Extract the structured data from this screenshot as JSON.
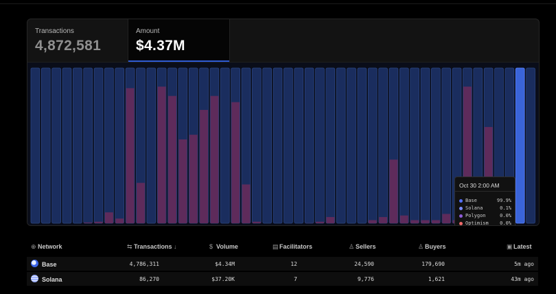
{
  "stats": {
    "transactions": {
      "label": "Transactions",
      "value": "4,872,581"
    },
    "amount": {
      "label": "Amount",
      "value": "$4.37M"
    }
  },
  "chart_data": {
    "type": "bar",
    "series": [
      {
        "name": "Base",
        "color": "#2c4fa8",
        "values": [
          100,
          100,
          100,
          100,
          100,
          100,
          100,
          100,
          100,
          100,
          100,
          100,
          100,
          100,
          100,
          100,
          100,
          100,
          100,
          100,
          100,
          100,
          100,
          100,
          100,
          100,
          100,
          100,
          100,
          100,
          100,
          100,
          100,
          100,
          100,
          100,
          100,
          100,
          100,
          100,
          100,
          100,
          100,
          100,
          100,
          100,
          100,
          100
        ]
      },
      {
        "name": "Optimism",
        "color": "#6b2c5b",
        "values": [
          0,
          0,
          0,
          0,
          0,
          0.5,
          1,
          7,
          3,
          87,
          26,
          0,
          88,
          82,
          54,
          57,
          73,
          82,
          0,
          78,
          25,
          1,
          0,
          0,
          0,
          0,
          0.1,
          1,
          4,
          0,
          0,
          0,
          2,
          4,
          41,
          5,
          2,
          2,
          2,
          6,
          2,
          88,
          0,
          62,
          0.5,
          1,
          0,
          0
        ]
      }
    ],
    "tooltip": {
      "title": "Oct 30 2:00 AM",
      "rows": [
        {
          "name": "Base",
          "pct": "99.9%",
          "color": "#5470ff"
        },
        {
          "name": "Solana",
          "pct": "0.1%",
          "color": "#7b8cff"
        },
        {
          "name": "Polygon",
          "pct": "0.0%",
          "color": "#8e5bd9"
        },
        {
          "name": "Optimism",
          "pct": "0.0%",
          "color": "#f06a6a"
        }
      ]
    },
    "highlight_index": 46
  },
  "table": {
    "headers": {
      "network": "Network",
      "transactions": "Transactions",
      "volume": "Volume",
      "facilitators": "Facilitators",
      "sellers": "Sellers",
      "buyers": "Buyers",
      "latest": "Latest"
    },
    "rows": [
      {
        "network": "Base",
        "transactions": "4,786,311",
        "volume": "$4.34M",
        "facilitators": "12",
        "sellers": "24,590",
        "buyers": "179,690",
        "latest": "5m ago"
      },
      {
        "network": "Solana",
        "transactions": "86,270",
        "volume": "$37.20K",
        "facilitators": "7",
        "sellers": "9,776",
        "buyers": "1,621",
        "latest": "43m ago"
      }
    ]
  },
  "icons": {
    "network": "globe-icon",
    "transactions": "arrows-icon",
    "volume": "dollar-icon",
    "facilitators": "server-icon",
    "sellers": "user-icon",
    "buyers": "user-icon",
    "latest": "calendar-icon"
  }
}
